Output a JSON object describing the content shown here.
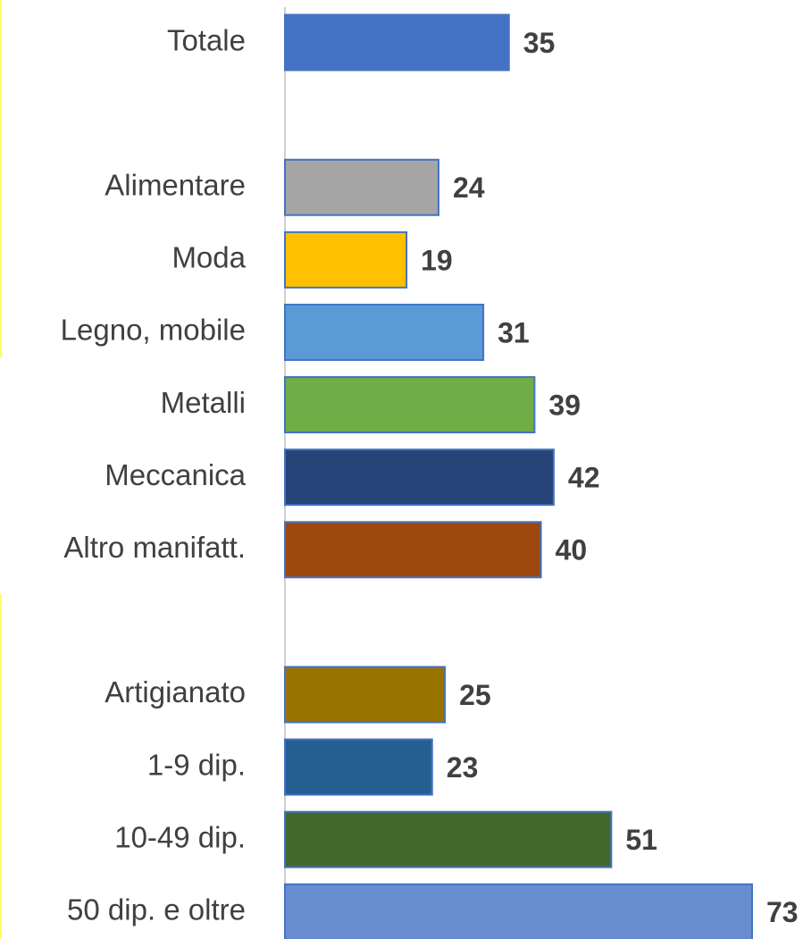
{
  "chart_data": {
    "type": "bar",
    "orientation": "horizontal",
    "categories": [
      "Totale",
      null,
      "Alimentare",
      "Moda",
      "Legno, mobile",
      "Metalli",
      "Meccanica",
      "Altro manifatt.",
      null,
      "Artigianato",
      "1-9 dip.",
      "10-49 dip.",
      "50 dip. e oltre"
    ],
    "values": [
      35,
      null,
      24,
      19,
      31,
      39,
      42,
      40,
      null,
      25,
      23,
      51,
      73
    ],
    "colors": [
      "#4472c4",
      null,
      "#a5a5a5",
      "#ffc000",
      "#5b9bd5",
      "#70ad47",
      "#264478",
      "#9e480e",
      null,
      "#997300",
      "#255e91",
      "#43682b",
      "#698ed0"
    ]
  }
}
